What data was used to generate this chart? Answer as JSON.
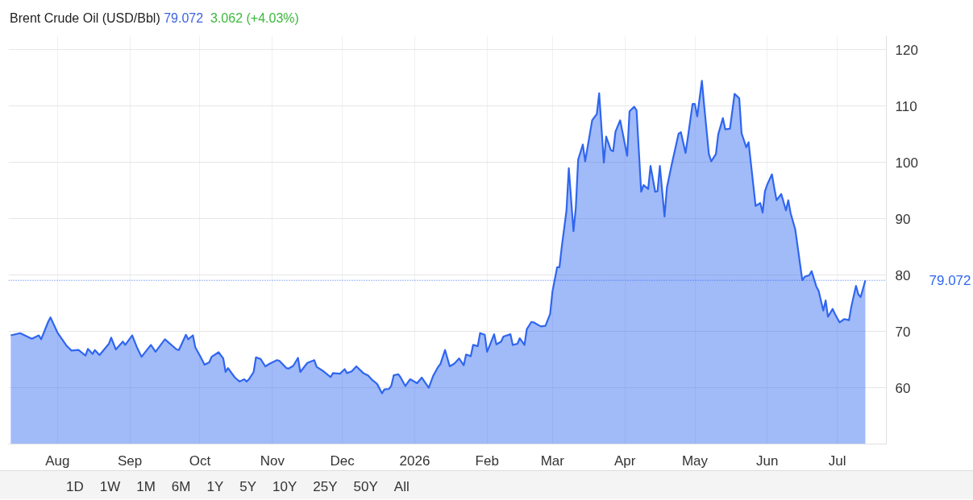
{
  "chart_data": {
    "type": "area",
    "title": "Brent Crude Oil (USD/Bbl)",
    "subtitle": "79.072",
    "annotations": [
      "3.062 (+4.03%)",
      "1D",
      "1W",
      "1M",
      "6M",
      "1Y",
      "5Y",
      "10Y",
      "25Y",
      "50Y",
      "All"
    ],
    "x": [
      "2025-07-12",
      "2025-07-16",
      "2025-07-21",
      "2025-07-24",
      "2025-07-25",
      "2025-07-28",
      "2025-07-29",
      "2025-08-01",
      "2025-08-05",
      "2025-08-07",
      "2025-08-10",
      "2025-08-13",
      "2025-08-14",
      "2025-08-16",
      "2025-08-17",
      "2025-08-19",
      "2025-08-23",
      "2025-08-24",
      "2025-08-26",
      "2025-08-29",
      "2025-08-30",
      "2025-09-02",
      "2025-09-04",
      "2025-09-06",
      "2025-09-10",
      "2025-09-12",
      "2025-09-16",
      "2025-09-21",
      "2025-09-22",
      "2025-09-25",
      "2025-09-26",
      "2025-09-28",
      "2025-09-29",
      "2025-10-01",
      "2025-10-03",
      "2025-10-05",
      "2025-10-06",
      "2025-10-09",
      "2025-10-11",
      "2025-10-12",
      "2025-10-13",
      "2025-10-16",
      "2025-10-18",
      "2025-10-20",
      "2025-10-21",
      "2025-10-22",
      "2025-10-24",
      "2025-10-25",
      "2025-10-27",
      "2025-10-29",
      "2025-10-31",
      "2025-11-03",
      "2025-11-04",
      "2025-11-07",
      "2025-11-08",
      "2025-11-10",
      "2025-11-12",
      "2025-11-13",
      "2025-11-16",
      "2025-11-19",
      "2025-11-20",
      "2025-11-23",
      "2025-11-26",
      "2025-11-27",
      "2025-11-30",
      "2025-12-02",
      "2025-12-03",
      "2025-12-05",
      "2025-12-07",
      "2025-12-10",
      "2025-12-12",
      "2025-12-14",
      "2025-12-15",
      "2025-12-16",
      "2025-12-18",
      "2025-12-19",
      "2025-12-21",
      "2025-12-22",
      "2025-12-23",
      "2025-12-25",
      "2025-12-26",
      "2025-12-28",
      "2025-12-30",
      "2025-12-31",
      "2026-01-02",
      "2026-01-04",
      "2026-01-07",
      "2026-01-09",
      "2026-01-11",
      "2026-01-12",
      "2026-01-14",
      "2026-01-16",
      "2026-01-18",
      "2026-01-20",
      "2026-01-22",
      "2026-01-23",
      "2026-01-25",
      "2026-01-26",
      "2026-01-28",
      "2026-01-29",
      "2026-01-31",
      "2026-02-01",
      "2026-02-02",
      "2026-02-04",
      "2026-02-05",
      "2026-02-07",
      "2026-02-08",
      "2026-02-11",
      "2026-02-12",
      "2026-02-14",
      "2026-02-15",
      "2026-02-17",
      "2026-02-18",
      "2026-02-20",
      "2026-02-21",
      "2026-02-24",
      "2026-02-26",
      "2026-02-28",
      "2026-03-01",
      "2026-03-03",
      "2026-03-04",
      "2026-03-05",
      "2026-03-07",
      "2026-03-08",
      "2026-03-10",
      "2026-03-11",
      "2026-03-12",
      "2026-03-14",
      "2026-03-15",
      "2026-03-18",
      "2026-03-20",
      "2026-03-21",
      "2026-03-23",
      "2026-03-24",
      "2026-03-26",
      "2026-03-27",
      "2026-03-28",
      "2026-03-30",
      "2026-04-02",
      "2026-04-03",
      "2026-04-05",
      "2026-04-06",
      "2026-04-08",
      "2026-04-09",
      "2026-04-11",
      "2026-04-12",
      "2026-04-14",
      "2026-04-15",
      "2026-04-16",
      "2026-04-18",
      "2026-04-19",
      "2026-04-21",
      "2026-04-24",
      "2026-04-25",
      "2026-04-27",
      "2026-04-28",
      "2026-04-30",
      "2026-05-01",
      "2026-05-02",
      "2026-05-04",
      "2026-05-05",
      "2026-05-07",
      "2026-05-08",
      "2026-05-10",
      "2026-05-11",
      "2026-05-13",
      "2026-05-14",
      "2026-05-16",
      "2026-05-18",
      "2026-05-20",
      "2026-05-21",
      "2026-05-23",
      "2026-05-24",
      "2026-05-27",
      "2026-05-29",
      "2026-05-30",
      "2026-05-31",
      "2026-06-01",
      "2026-06-03",
      "2026-06-04",
      "2026-06-05",
      "2026-06-07",
      "2026-06-09",
      "2026-06-10",
      "2026-06-11",
      "2026-06-13",
      "2026-06-16",
      "2026-06-17",
      "2026-06-19",
      "2026-06-20",
      "2026-06-22",
      "2026-06-23",
      "2026-06-25",
      "2026-06-26",
      "2026-06-27",
      "2026-06-29",
      "2026-06-30",
      "2026-07-02",
      "2026-07-04",
      "2026-07-06",
      "2026-07-07",
      "2026-07-09",
      "2026-07-10",
      "2026-07-11",
      "2026-07-13"
    ],
    "series": [
      {
        "color": "#2f66ef",
        "values": [
          69.3,
          69.7,
          68.7,
          69.3,
          68.6,
          71.7,
          72.5,
          69.8,
          67.4,
          66.6,
          66.7,
          65.7,
          66.9,
          66.0,
          66.7,
          65.8,
          67.8,
          68.9,
          66.8,
          68.2,
          67.6,
          69.3,
          67.2,
          65.5,
          67.6,
          66.4,
          68.6,
          66.8,
          66.7,
          69.4,
          68.6,
          69.3,
          67.2,
          65.7,
          64.1,
          64.5,
          65.5,
          66.3,
          65.2,
          62.8,
          63.5,
          61.8,
          61.1,
          61.5,
          61.1,
          61.5,
          62.8,
          65.4,
          65.1,
          63.8,
          64.3,
          64.9,
          64.8,
          63.5,
          63.4,
          63.9,
          65.3,
          62.8,
          64.4,
          64.9,
          63.7,
          62.9,
          61.9,
          62.6,
          62.5,
          63.3,
          62.6,
          62.9,
          63.8,
          62.6,
          62.2,
          61.3,
          61.0,
          60.6,
          59.0,
          59.7,
          59.8,
          60.4,
          62.2,
          62.4,
          61.8,
          60.3,
          61.5,
          61.3,
          60.8,
          61.8,
          60.0,
          62.2,
          63.7,
          64.2,
          66.7,
          63.8,
          64.3,
          65.2,
          64.0,
          65.9,
          65.6,
          67.6,
          67.4,
          69.7,
          69.4,
          66.4,
          67.4,
          69.5,
          67.7,
          68.2,
          69.1,
          69.5,
          67.6,
          67.8,
          68.8,
          67.6,
          70.4,
          71.7,
          71.6,
          70.9,
          71.0,
          73.1,
          77.1,
          81.4,
          81.4,
          85.1,
          91.5,
          99.0,
          87.8,
          92.0,
          100.5,
          103.2,
          100.2,
          107.5,
          108.6,
          112.3,
          100.0,
          104.6,
          102.2,
          102.0,
          105.5,
          107.5,
          101.2,
          109.1,
          109.9,
          109.3,
          94.8,
          96.0,
          95.3,
          99.4,
          94.8,
          94.9,
          99.4,
          90.4,
          95.5,
          99.5,
          105.1,
          105.4,
          101.7,
          104.5,
          110.4,
          110.4,
          108.2,
          114.5,
          110.0,
          101.5,
          100.2,
          101.5,
          105.0,
          107.9,
          105.9,
          106.0,
          112.2,
          111.4,
          105.2,
          102.7,
          103.6,
          92.3,
          92.8,
          91.1,
          94.9,
          96.1,
          97.9,
          95.5,
          93.3,
          94.4,
          91.5,
          93.3,
          91.0,
          88.1,
          79.1,
          79.7,
          80.0,
          80.7,
          78.0,
          77.2,
          73.7,
          75.5,
          72.6,
          74.0,
          73.1,
          71.6,
          72.2,
          72.0,
          74.4,
          78.1,
          76.6,
          76.1,
          79.072
        ]
      }
    ],
    "xlim": [
      "2025-07-11",
      "2026-07-22"
    ],
    "xticks": [
      {
        "value": "2025-08-01",
        "label": "Aug"
      },
      {
        "value": "2025-09-01",
        "label": "Sep"
      },
      {
        "value": "2025-10-01",
        "label": "Oct"
      },
      {
        "value": "2025-11-01",
        "label": "Nov"
      },
      {
        "value": "2025-12-01",
        "label": "Dec"
      },
      {
        "value": "2026-01-01",
        "label": "2026"
      },
      {
        "value": "2026-02-01",
        "label": "Feb"
      },
      {
        "value": "2026-03-01",
        "label": "Mar"
      },
      {
        "value": "2026-04-01",
        "label": "Apr"
      },
      {
        "value": "2026-05-01",
        "label": "May"
      },
      {
        "value": "2026-06-01",
        "label": "Jun"
      },
      {
        "value": "2026-07-01",
        "label": "Jul"
      }
    ],
    "ylim": [
      50,
      122.5
    ],
    "yticks": [
      60,
      70,
      80,
      90,
      100,
      110,
      120
    ],
    "ref_lines": [
      {
        "axis": "y",
        "value": 79.072,
        "label": "79.072",
        "color": "#2f66ef",
        "line_style": "dotted"
      }
    ],
    "grid": true,
    "marker": "none",
    "line_style": "solid"
  }
}
